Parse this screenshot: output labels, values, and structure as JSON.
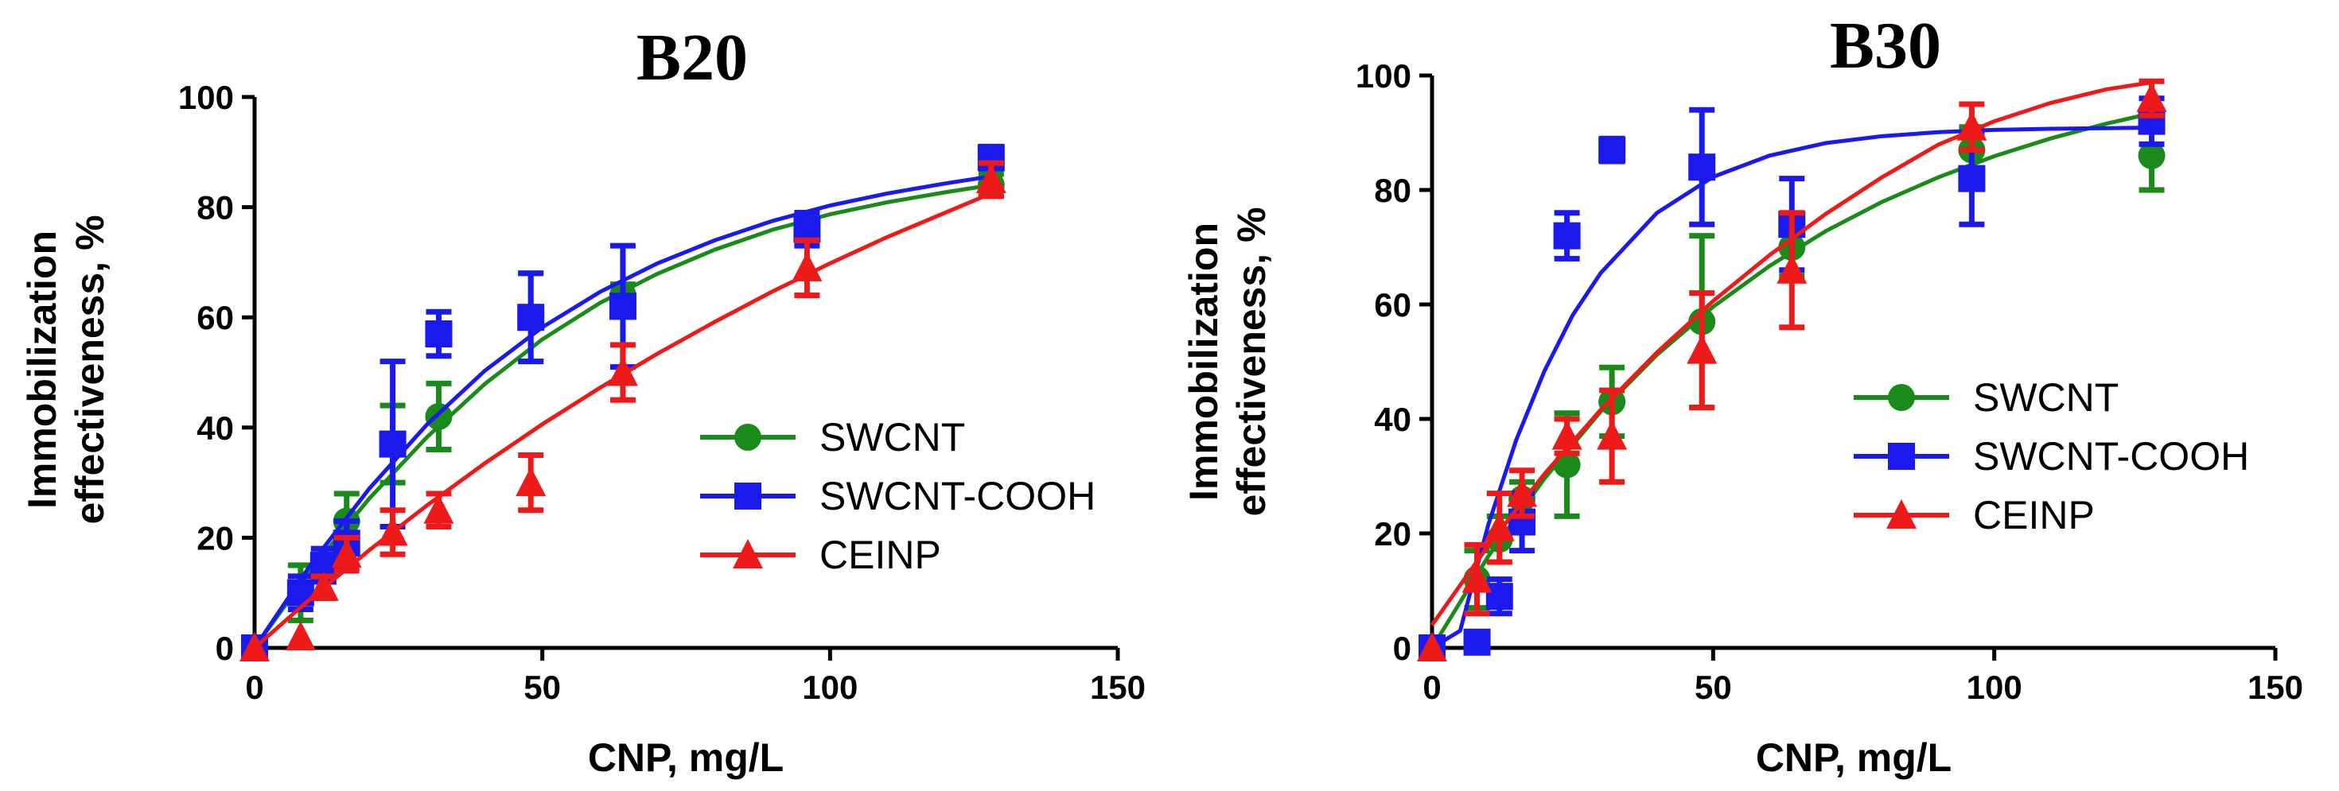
{
  "chart_data": [
    {
      "type": "scatter",
      "title": "B20",
      "xlabel": "CNP, mg/L",
      "ylabel": "Immobilization effectiveness, %",
      "xlim": [
        0,
        150
      ],
      "ylim": [
        0,
        100
      ],
      "xticks": [
        0,
        50,
        100,
        150
      ],
      "yticks": [
        0,
        20,
        40,
        60,
        80,
        100
      ],
      "legend_position": "center-right",
      "series": [
        {
          "name": "SWCNT",
          "color": "#1a8a1a",
          "marker": "circle",
          "x": [
            0,
            8,
            12,
            16,
            24,
            32,
            48,
            64,
            96,
            128
          ],
          "y": [
            0,
            10,
            15,
            23,
            37,
            42,
            60,
            64,
            76,
            84
          ],
          "err": [
            0,
            5,
            3,
            5,
            7,
            6,
            8,
            2,
            2,
            2
          ],
          "fit": [
            0,
            10,
            20,
            30,
            40,
            50,
            60,
            70,
            80,
            90,
            100,
            110,
            120,
            128
          ],
          "fit_y": [
            0,
            14.5,
            27.2,
            38.3,
            47.9,
            56.0,
            62.6,
            67.9,
            72.3,
            75.9,
            78.7,
            80.9,
            82.7,
            84.0
          ]
        },
        {
          "name": "SWCNT-COOH",
          "color": "#1a1aee",
          "marker": "square",
          "x": [
            0,
            8,
            12,
            16,
            24,
            32,
            48,
            64,
            96,
            128
          ],
          "y": [
            0,
            10,
            15,
            19,
            37,
            57,
            60,
            62,
            76,
            89
          ],
          "err": [
            0,
            3,
            3,
            4,
            15,
            4,
            8,
            11,
            3,
            2
          ],
          "fit": [
            0,
            10,
            20,
            30,
            40,
            50,
            60,
            70,
            80,
            90,
            100,
            110,
            120,
            128
          ],
          "fit_y": [
            0,
            15.5,
            29.0,
            40.6,
            50.3,
            58.2,
            64.6,
            69.8,
            74.0,
            77.5,
            80.3,
            82.5,
            84.3,
            85.6
          ]
        },
        {
          "name": "CEINP",
          "color": "#ee1a1a",
          "marker": "triangle",
          "x": [
            0,
            8,
            12,
            16,
            24,
            32,
            48,
            64,
            96,
            128
          ],
          "y": [
            0,
            2,
            11,
            17,
            21,
            25,
            30,
            50,
            69,
            85
          ],
          "err": [
            0,
            0,
            2,
            3,
            4,
            3,
            5,
            5,
            5,
            3
          ],
          "fit": [
            0,
            10,
            20,
            30,
            40,
            50,
            60,
            70,
            80,
            90,
            100,
            110,
            120,
            128
          ],
          "fit_y": [
            0,
            9.2,
            17.8,
            25.9,
            33.5,
            40.6,
            47.2,
            53.4,
            59.2,
            64.7,
            69.8,
            74.6,
            79.0,
            82.5
          ]
        }
      ]
    },
    {
      "type": "scatter",
      "title": "B30",
      "xlabel": "CNP, mg/L",
      "ylabel": "Immobilization effectiveness, %",
      "xlim": [
        0,
        150
      ],
      "ylim": [
        0,
        100
      ],
      "xticks": [
        0,
        50,
        100,
        150
      ],
      "yticks": [
        0,
        20,
        40,
        60,
        80,
        100
      ],
      "legend_position": "center-right",
      "series": [
        {
          "name": "SWCNT",
          "color": "#1a8a1a",
          "marker": "circle",
          "x": [
            0,
            8,
            12,
            16,
            24,
            32,
            48,
            64,
            96,
            128
          ],
          "y": [
            0,
            12,
            19,
            26,
            32,
            43,
            57,
            70,
            87,
            86
          ],
          "err": [
            0,
            5,
            4,
            3,
            9,
            6,
            15,
            5,
            4,
            6
          ],
          "fit": [
            0,
            10,
            20,
            30,
            40,
            50,
            60,
            70,
            80,
            90,
            100,
            110,
            120,
            128
          ],
          "fit_y": [
            0,
            16.0,
            29.6,
            41.3,
            51.2,
            59.6,
            66.7,
            72.8,
            77.9,
            82.2,
            85.9,
            89.0,
            91.6,
            93.4
          ]
        },
        {
          "name": "SWCNT-COOH",
          "color": "#1a1aee",
          "marker": "square",
          "x": [
            0,
            8,
            12,
            16,
            24,
            32,
            48,
            64,
            96,
            128
          ],
          "y": [
            0,
            1,
            9,
            22,
            72,
            87,
            84,
            74,
            82,
            92
          ],
          "err": [
            0,
            1,
            3,
            5,
            4,
            2,
            10,
            8,
            8,
            4
          ],
          "fit": [
            0,
            5,
            10,
            15,
            20,
            25,
            30,
            40,
            50,
            60,
            70,
            80,
            90,
            100,
            110,
            120,
            128
          ],
          "fit_y": [
            0,
            3.0,
            21.5,
            36.4,
            48.4,
            58.1,
            65.5,
            76.0,
            82.3,
            86.0,
            88.2,
            89.4,
            90.1,
            90.5,
            90.7,
            90.8,
            90.9
          ]
        },
        {
          "name": "CEINP",
          "color": "#ee1a1a",
          "marker": "triangle",
          "x": [
            0,
            8,
            12,
            16,
            24,
            32,
            48,
            64,
            96,
            128
          ],
          "y": [
            0,
            12,
            21,
            27,
            37,
            37,
            52,
            66,
            91,
            96
          ],
          "err": [
            0,
            6,
            6,
            4,
            3,
            8,
            10,
            10,
            4,
            3
          ],
          "fit": [
            0,
            10,
            20,
            30,
            40,
            50,
            60,
            70,
            80,
            90,
            100,
            110,
            120,
            128
          ],
          "fit_y": [
            4.0,
            17.9,
            30.4,
            41.6,
            51.6,
            60.6,
            68.6,
            75.8,
            82.2,
            87.9,
            92.0,
            95.2,
            97.6,
            98.8
          ]
        }
      ]
    }
  ]
}
